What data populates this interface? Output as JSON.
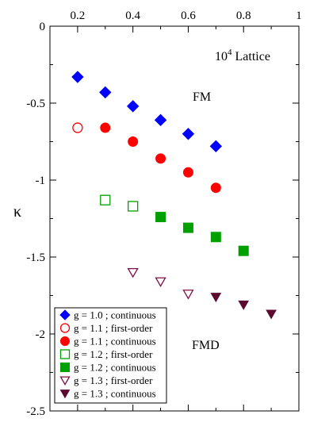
{
  "chart_data": {
    "type": "scatter",
    "title": "",
    "xlabel": "",
    "ylabel": "κ",
    "xlim": [
      0.1,
      1.0
    ],
    "ylim": [
      -2.5,
      0
    ],
    "x_ticks": [
      {
        "value": 0.2,
        "label": "0.2"
      },
      {
        "value": 0.4,
        "label": "0.4"
      },
      {
        "value": 0.6,
        "label": "0.6"
      },
      {
        "value": 0.8,
        "label": "0.8"
      },
      {
        "value": 1.0,
        "label": "1"
      }
    ],
    "y_ticks": [
      {
        "value": 0,
        "label": "0"
      },
      {
        "value": -0.5,
        "label": "-0.5"
      },
      {
        "value": -1,
        "label": "-1"
      },
      {
        "value": -1.5,
        "label": "-1.5"
      },
      {
        "value": -2,
        "label": "-2"
      },
      {
        "value": -2.5,
        "label": "-2.5"
      }
    ],
    "grid": false,
    "legend_position": "bottom-left",
    "annotations": {
      "lattice": "10",
      "lattice_exp": "4",
      "lattice_word": " Lattice",
      "fm": "FM",
      "fmd": "FMD"
    },
    "series": [
      {
        "name": "g = 1.0 ; continuous",
        "marker": "diamond",
        "filled": true,
        "color": "#0000ff",
        "points": [
          [
            0.2,
            -0.33
          ],
          [
            0.3,
            -0.43
          ],
          [
            0.4,
            -0.52
          ],
          [
            0.5,
            -0.61
          ],
          [
            0.6,
            -0.7
          ],
          [
            0.7,
            -0.78
          ]
        ]
      },
      {
        "name": "g = 1.1 ; first-order",
        "marker": "circle",
        "filled": false,
        "color": "#ff0000",
        "points": [
          [
            0.2,
            -0.66
          ]
        ]
      },
      {
        "name": "g = 1.1 ; continuous",
        "marker": "circle",
        "filled": true,
        "color": "#ff0000",
        "points": [
          [
            0.3,
            -0.66
          ],
          [
            0.4,
            -0.75
          ],
          [
            0.5,
            -0.86
          ],
          [
            0.6,
            -0.95
          ],
          [
            0.7,
            -1.05
          ]
        ]
      },
      {
        "name": "g = 1.2 ; first-order",
        "marker": "square",
        "filled": false,
        "color": "#00a000",
        "points": [
          [
            0.3,
            -1.13
          ],
          [
            0.4,
            -1.17
          ]
        ]
      },
      {
        "name": "g = 1.2 ; continuous",
        "marker": "square",
        "filled": true,
        "color": "#00a000",
        "points": [
          [
            0.5,
            -1.24
          ],
          [
            0.6,
            -1.31
          ],
          [
            0.7,
            -1.37
          ],
          [
            0.8,
            -1.46
          ]
        ]
      },
      {
        "name": "g = 1.3 ; first-order",
        "marker": "triangle-down",
        "filled": false,
        "color": "#7a1048",
        "points": [
          [
            0.4,
            -1.6
          ],
          [
            0.5,
            -1.66
          ],
          [
            0.6,
            -1.74
          ]
        ]
      },
      {
        "name": "g = 1.3 ; continuous",
        "marker": "triangle-down",
        "filled": true,
        "color": "#5c0a30",
        "points": [
          [
            0.7,
            -1.76
          ],
          [
            0.8,
            -1.81
          ],
          [
            0.9,
            -1.87
          ]
        ]
      }
    ]
  }
}
